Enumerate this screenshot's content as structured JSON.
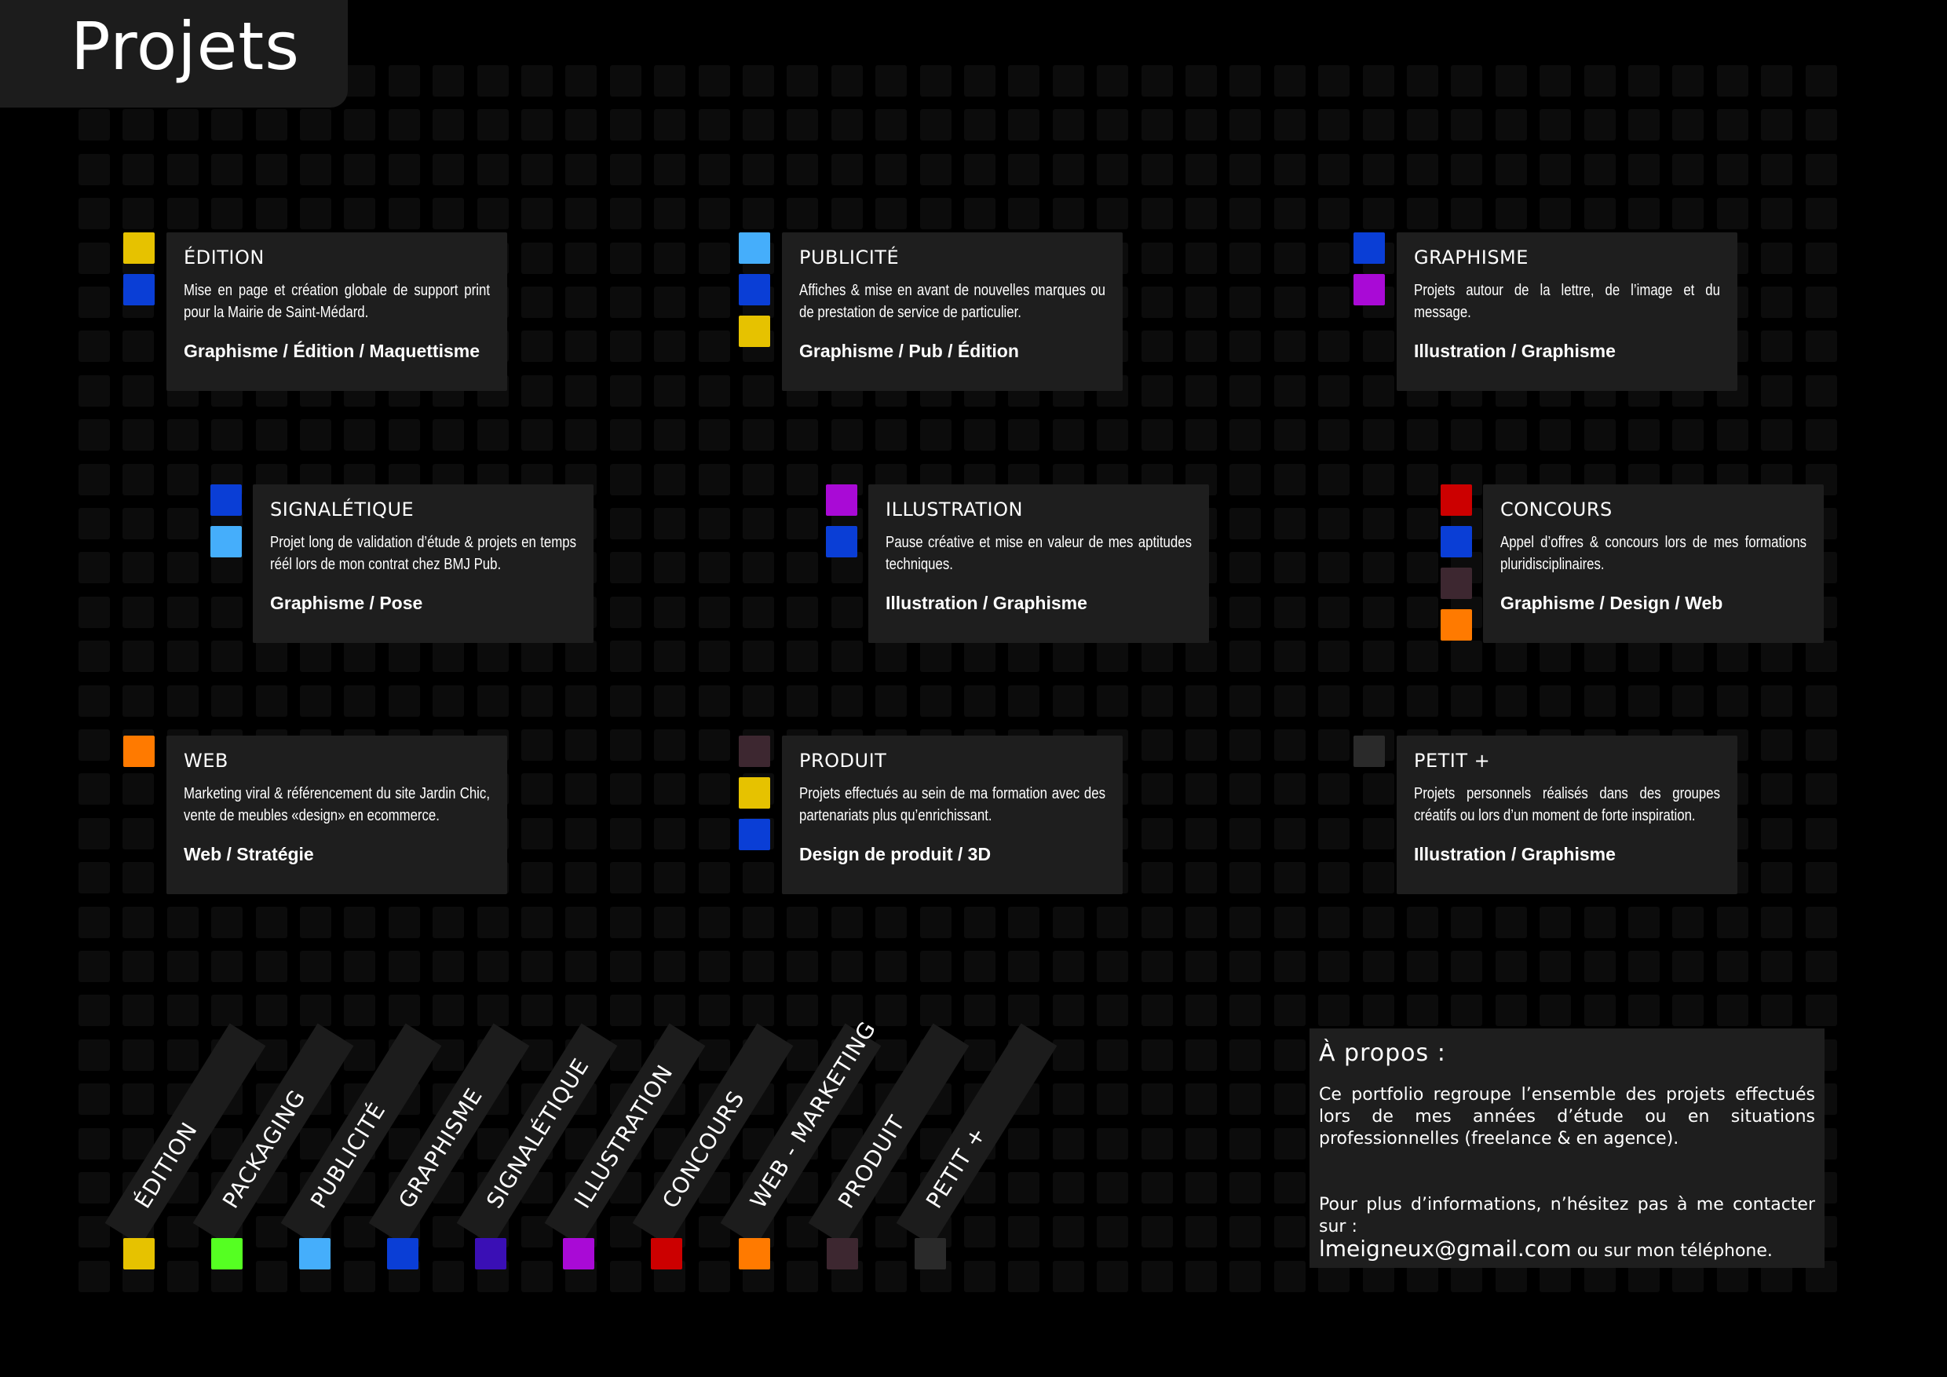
{
  "page": {
    "title": "Projets"
  },
  "colors": {
    "yellow": "#e6c200",
    "blue": "#0a3ed6",
    "sky": "#45aefb",
    "purple": "#a90ad6",
    "red": "#cc0000",
    "plum": "#3d2730",
    "orange": "#ff7a00",
    "green": "#55ff22",
    "indigo": "#3a0fb5",
    "gray": "#2a2a2a"
  },
  "cards": [
    {
      "title": "ÉDITION",
      "desc": "Mise en page et création globale de support print pour la Mairie de Saint-Médard.",
      "tags": "Graphisme / Édition / Maquettisme",
      "swatches": [
        "yellow",
        "blue"
      ]
    },
    {
      "title": "PUBLICITÉ",
      "desc": "Affiches & mise en avant de nouvelles marques ou de prestation de service de particulier.",
      "tags": "Graphisme / Pub / Édition",
      "swatches": [
        "sky",
        "blue",
        "yellow"
      ]
    },
    {
      "title": "GRAPHISME",
      "desc": "Projets autour de la lettre, de l’image et du message.",
      "tags": "Illustration / Graphisme",
      "swatches": [
        "blue",
        "purple"
      ]
    },
    {
      "title": "SIGNALÉTIQUE",
      "desc": "Projet long de validation d’étude & projets en temps réél lors de mon contrat chez BMJ Pub.",
      "tags": "Graphisme / Pose",
      "swatches": [
        "blue",
        "sky"
      ]
    },
    {
      "title": "ILLUSTRATION",
      "desc": "Pause créative et mise en valeur de mes aptitudes techniques.",
      "tags": "Illustration / Graphisme",
      "swatches": [
        "purple",
        "blue"
      ]
    },
    {
      "title": "CONCOURS",
      "desc": "Appel d’offres & concours lors de mes formations pluridisciplinaires.",
      "tags": "Graphisme / Design / Web",
      "swatches": [
        "red",
        "blue",
        "plum",
        "orange"
      ]
    },
    {
      "title": "WEB",
      "desc": "Marketing viral & référencement du site Jardin Chic, vente de meubles «design» en ecommerce.",
      "tags": "Web / Stratégie",
      "swatches": [
        "orange"
      ]
    },
    {
      "title": "PRODUIT",
      "desc": "Projets effectués au sein de ma formation avec des partenariats plus qu’enrichissant.",
      "tags": "Design de produit / 3D",
      "swatches": [
        "plum",
        "yellow",
        "blue"
      ]
    },
    {
      "title": "PETIT +",
      "desc": "Projets personnels réalisés dans des groupes créatifs ou lors d’un moment de forte inspiration.",
      "tags": "Illustration / Graphisme",
      "swatches": [
        "gray"
      ]
    }
  ],
  "legend": [
    {
      "label": "ÉDITION",
      "color": "yellow"
    },
    {
      "label": "PACKAGING",
      "color": "green"
    },
    {
      "label": "PUBLICITÉ",
      "color": "sky"
    },
    {
      "label": "GRAPHISME",
      "color": "blue"
    },
    {
      "label": "SIGNALÉTIQUE",
      "color": "indigo"
    },
    {
      "label": "ILLUSTRATION",
      "color": "purple"
    },
    {
      "label": "CONCOURS",
      "color": "red"
    },
    {
      "label": "WEB - MARKETING",
      "color": "orange"
    },
    {
      "label": "PRODUIT",
      "color": "plum"
    },
    {
      "label": "PETIT +",
      "color": "gray"
    }
  ],
  "about": {
    "title": "À propos :",
    "paragraph1": "Ce portfolio regroupe l’ensemble des projets effectués lors de mes années d’étude ou en situations professionnelles (freelance & en agence).",
    "paragraph2": "Pour plus d’informations, n’hésitez pas à me contacter sur :",
    "email": "lmeigneux@gmail.com",
    "email_suffix": " ou sur mon téléphone."
  }
}
